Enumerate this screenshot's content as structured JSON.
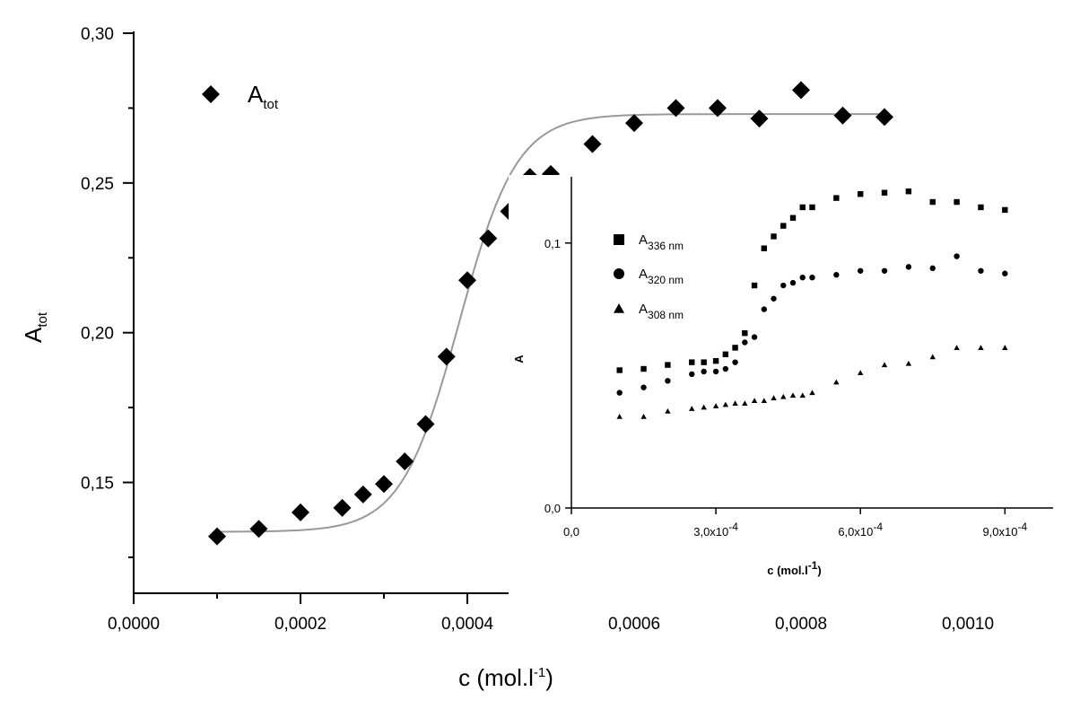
{
  "chart_data": [
    {
      "type": "scatter",
      "id": "main",
      "xlabel_base": "c (mol.l",
      "xlabel_sup": "-1",
      "xlabel_end": ")",
      "ylabel_base": "A",
      "ylabel_sub": "tot",
      "xlim": [
        0,
        0.001
      ],
      "ylim": [
        0.113,
        0.3
      ],
      "x_ticks": [
        0,
        0.0002,
        0.0004,
        0.0006,
        0.0008,
        0.001
      ],
      "x_tick_labels": [
        "0,0000",
        "0,0002",
        "0,0004",
        "0,0006",
        "0,0008",
        "0,0010"
      ],
      "y_ticks": [
        0.15,
        0.2,
        0.25,
        0.3
      ],
      "y_tick_labels": [
        "0,15",
        "0,20",
        "0,25",
        "0,30"
      ],
      "grid": false,
      "legend_position": "top-left",
      "series": [
        {
          "name_base": "A",
          "name_sub": "tot",
          "marker": "diamond",
          "x": [
            0.0001,
            0.00015,
            0.0002,
            0.00025,
            0.000275,
            0.0003,
            0.000325,
            0.00035,
            0.000375,
            0.0004,
            0.000425,
            0.00045,
            0.000475,
            0.0005,
            0.00055,
            0.0006,
            0.00065,
            0.0007,
            0.00075,
            0.0008,
            0.00085,
            0.0009
          ],
          "y": [
            0.132,
            0.1345,
            0.14,
            0.1415,
            0.146,
            0.1495,
            0.157,
            0.1695,
            0.192,
            0.2175,
            0.2315,
            0.2405,
            0.252,
            0.253,
            0.263,
            0.27,
            0.275,
            0.275,
            0.2715,
            0.281,
            0.2725,
            0.272
          ]
        }
      ],
      "fit_curve": {
        "marker": "line",
        "color": "#999999",
        "bottom": 0.1335,
        "top": 0.273,
        "x0": 0.00039,
        "slope_width": 3.45e-05,
        "x_start": 0.0001,
        "x_end": 0.0009
      }
    },
    {
      "type": "scatter",
      "id": "inset",
      "xlabel_base": "c (mol.l",
      "xlabel_sup": "-1",
      "xlabel_end": ")",
      "ylabel": "A",
      "xlim": [
        0,
        0.001
      ],
      "ylim": [
        0,
        0.125
      ],
      "x_ticks": [
        0,
        0.0003,
        0.0006,
        0.0009
      ],
      "x_tick_labels": [
        "0,0",
        "3,0x10",
        "6,0x10",
        "9,0x10"
      ],
      "x_tick_sup": [
        "",
        "-4",
        "-4",
        "-4"
      ],
      "y_ticks": [
        0,
        0.1
      ],
      "y_tick_labels": [
        "0,0",
        "0,1"
      ],
      "grid": false,
      "legend_position": "top-left",
      "series": [
        {
          "name_base": "A",
          "name_sub": "336 nm",
          "marker": "square",
          "x": [
            0.0001,
            0.00015,
            0.0002,
            0.00025,
            0.000275,
            0.0003,
            0.00032,
            0.00034,
            0.00036,
            0.00038,
            0.0004,
            0.00042,
            0.00044,
            0.00046,
            0.00048,
            0.0005,
            0.00055,
            0.0006,
            0.00065,
            0.0007,
            0.00075,
            0.0008,
            0.00085,
            0.0009
          ],
          "y": [
            0.052,
            0.0525,
            0.054,
            0.055,
            0.055,
            0.0555,
            0.058,
            0.0605,
            0.066,
            0.084,
            0.098,
            0.1025,
            0.1065,
            0.1095,
            0.1135,
            0.1135,
            0.117,
            0.1185,
            0.119,
            0.1195,
            0.1155,
            0.1155,
            0.1135,
            0.1125
          ]
        },
        {
          "name_base": "A",
          "name_sub": "320 nm",
          "marker": "circle",
          "x": [
            0.0001,
            0.00015,
            0.0002,
            0.00025,
            0.000275,
            0.0003,
            0.00032,
            0.00034,
            0.00036,
            0.00038,
            0.0004,
            0.00042,
            0.00044,
            0.00046,
            0.00048,
            0.0005,
            0.00055,
            0.0006,
            0.00065,
            0.0007,
            0.00075,
            0.0008,
            0.00085,
            0.0009
          ],
          "y": [
            0.0435,
            0.0455,
            0.048,
            0.0505,
            0.0515,
            0.0515,
            0.0525,
            0.055,
            0.0625,
            0.0645,
            0.075,
            0.079,
            0.084,
            0.085,
            0.087,
            0.087,
            0.088,
            0.0895,
            0.0895,
            0.091,
            0.0905,
            0.095,
            0.0895,
            0.0885
          ]
        },
        {
          "name_base": "A",
          "name_sub": "308 nm",
          "marker": "triangle",
          "x": [
            0.0001,
            0.00015,
            0.0002,
            0.00025,
            0.000275,
            0.0003,
            0.00032,
            0.00034,
            0.00036,
            0.00038,
            0.0004,
            0.00042,
            0.00044,
            0.00046,
            0.00048,
            0.0005,
            0.00055,
            0.0006,
            0.00065,
            0.0007,
            0.00075,
            0.0008,
            0.00085,
            0.0009
          ],
          "y": [
            0.0345,
            0.0345,
            0.0365,
            0.0375,
            0.038,
            0.0385,
            0.039,
            0.0395,
            0.0395,
            0.0405,
            0.0405,
            0.0415,
            0.042,
            0.0425,
            0.0425,
            0.0435,
            0.0475,
            0.051,
            0.054,
            0.0545,
            0.057,
            0.0605,
            0.0605,
            0.0605
          ]
        }
      ]
    }
  ]
}
